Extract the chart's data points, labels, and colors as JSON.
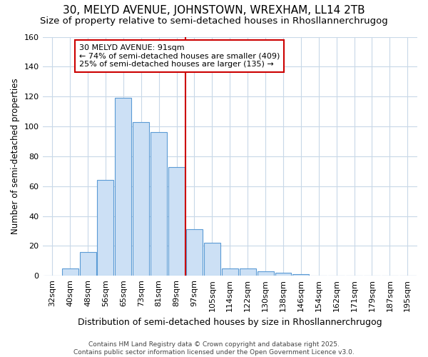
{
  "title": "30, MELYD AVENUE, JOHNSTOWN, WREXHAM, LL14 2TB",
  "subtitle": "Size of property relative to semi-detached houses in Rhosllannerchrugog",
  "xlabel": "Distribution of semi-detached houses by size in Rhosllannerchrugog",
  "ylabel": "Number of semi-detached properties",
  "footnote": "Contains HM Land Registry data © Crown copyright and database right 2025.\nContains public sector information licensed under the Open Government Licence v3.0.",
  "bin_labels": [
    "32sqm",
    "40sqm",
    "48sqm",
    "56sqm",
    "65sqm",
    "73sqm",
    "81sqm",
    "89sqm",
    "97sqm",
    "105sqm",
    "114sqm",
    "122sqm",
    "130sqm",
    "138sqm",
    "146sqm",
    "154sqm",
    "162sqm",
    "171sqm",
    "179sqm",
    "187sqm",
    "195sqm"
  ],
  "counts": [
    0,
    5,
    16,
    64,
    119,
    103,
    96,
    73,
    31,
    22,
    5,
    5,
    3,
    2,
    1,
    0,
    0,
    0,
    0,
    0,
    0
  ],
  "bar_color": "#cce0f5",
  "bar_edge_color": "#5b9bd5",
  "vline_color": "#cc0000",
  "vline_index": 7.5,
  "annotation_text": "30 MELYD AVENUE: 91sqm\n← 74% of semi-detached houses are smaller (409)\n25% of semi-detached houses are larger (135) →",
  "annotation_box_color": "#ffffff",
  "annotation_box_edge": "#cc0000",
  "ylim": [
    0,
    160
  ],
  "yticks": [
    0,
    20,
    40,
    60,
    80,
    100,
    120,
    140,
    160
  ],
  "background_color": "#ffffff",
  "grid_color": "#c8d8e8",
  "title_fontsize": 11,
  "subtitle_fontsize": 9.5,
  "xlabel_fontsize": 9,
  "ylabel_fontsize": 8.5,
  "tick_fontsize": 8,
  "annotation_fontsize": 8,
  "footnote_fontsize": 6.5
}
